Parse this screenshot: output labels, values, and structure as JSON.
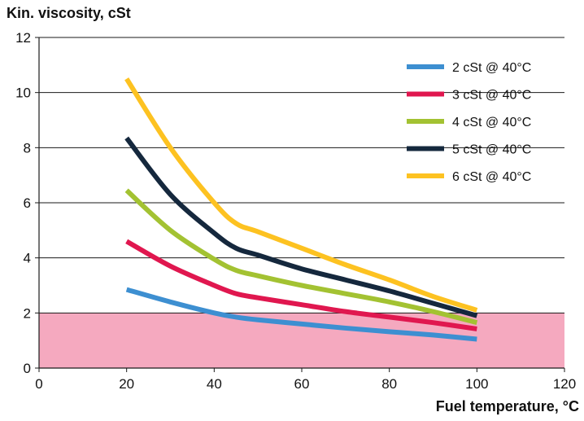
{
  "chart_data": {
    "type": "line",
    "ylabel": "Kin. viscosity, cSt",
    "xlabel": "Fuel temperature, °C",
    "xlim": [
      0,
      120
    ],
    "ylim": [
      0,
      12
    ],
    "xticks": [
      0,
      20,
      40,
      60,
      80,
      100,
      120
    ],
    "yticks": [
      0,
      2,
      4,
      6,
      8,
      10,
      12
    ],
    "grid": "horizontal",
    "legend_position": "top-right",
    "shaded_band": {
      "y_from": 0,
      "y_to": 2,
      "color": "#f5a9bf"
    },
    "series": [
      {
        "name": "2 cSt @ 40°C",
        "color": "#3d8fd1",
        "points": [
          [
            20,
            2.85
          ],
          [
            30,
            2.4
          ],
          [
            40,
            2.0
          ],
          [
            45,
            1.85
          ],
          [
            50,
            1.75
          ],
          [
            60,
            1.6
          ],
          [
            70,
            1.45
          ],
          [
            80,
            1.32
          ],
          [
            90,
            1.2
          ],
          [
            100,
            1.05
          ]
        ]
      },
      {
        "name": "3 cSt @ 40°C",
        "color": "#e0174f",
        "points": [
          [
            20,
            4.6
          ],
          [
            30,
            3.7
          ],
          [
            40,
            3.0
          ],
          [
            45,
            2.7
          ],
          [
            50,
            2.55
          ],
          [
            60,
            2.3
          ],
          [
            70,
            2.05
          ],
          [
            80,
            1.85
          ],
          [
            90,
            1.65
          ],
          [
            100,
            1.42
          ]
        ]
      },
      {
        "name": "4 cSt @ 40°C",
        "color": "#a3c232",
        "points": [
          [
            20,
            6.45
          ],
          [
            30,
            5.0
          ],
          [
            40,
            3.95
          ],
          [
            45,
            3.55
          ],
          [
            50,
            3.35
          ],
          [
            60,
            3.0
          ],
          [
            70,
            2.7
          ],
          [
            80,
            2.4
          ],
          [
            90,
            2.05
          ],
          [
            100,
            1.65
          ]
        ]
      },
      {
        "name": "5 cSt @ 40°C",
        "color": "#15283d",
        "points": [
          [
            20,
            8.35
          ],
          [
            30,
            6.3
          ],
          [
            40,
            4.9
          ],
          [
            45,
            4.35
          ],
          [
            50,
            4.1
          ],
          [
            60,
            3.6
          ],
          [
            70,
            3.2
          ],
          [
            80,
            2.8
          ],
          [
            90,
            2.35
          ],
          [
            100,
            1.9
          ]
        ]
      },
      {
        "name": "6 cSt @ 40°C",
        "color": "#fdc221",
        "points": [
          [
            20,
            10.5
          ],
          [
            30,
            8.0
          ],
          [
            40,
            6.0
          ],
          [
            45,
            5.25
          ],
          [
            50,
            4.95
          ],
          [
            60,
            4.35
          ],
          [
            70,
            3.75
          ],
          [
            80,
            3.2
          ],
          [
            90,
            2.6
          ],
          [
            100,
            2.1
          ]
        ]
      }
    ]
  }
}
